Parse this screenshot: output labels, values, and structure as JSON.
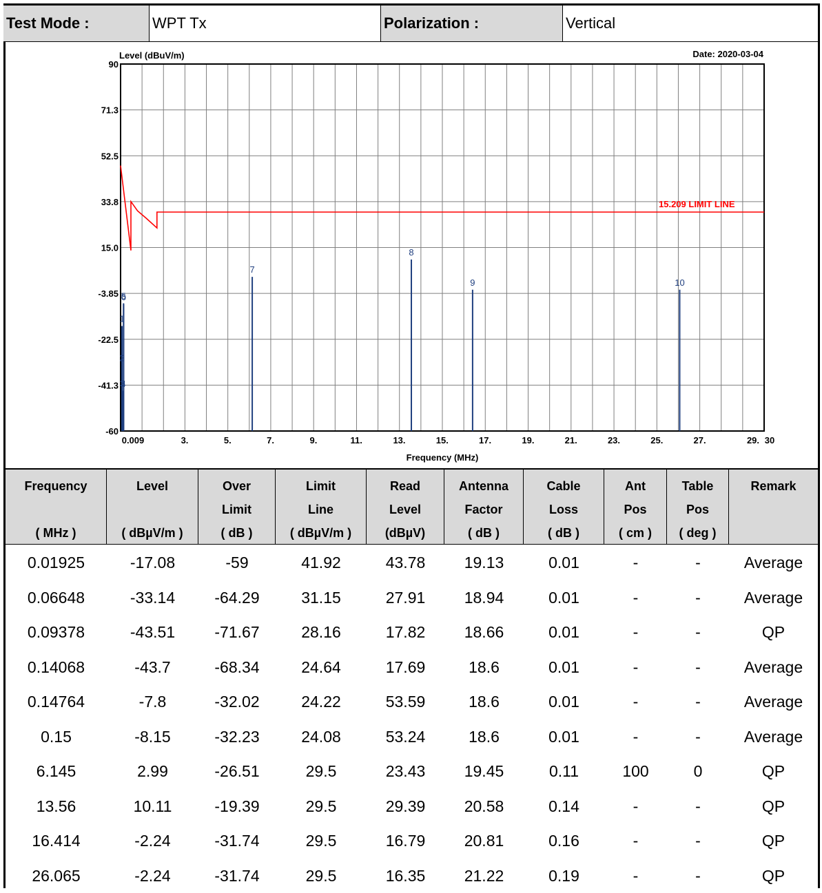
{
  "header": {
    "test_mode_label": "Test Mode :",
    "test_mode_value": "WPT Tx",
    "polarization_label": "Polarization :",
    "polarization_value": "Vertical"
  },
  "chart_data": {
    "type": "line",
    "title": "",
    "ylabel": "Level (dBuV/m)",
    "xlabel": "Frequency (MHz)",
    "date_label": "Date: 2020-03-04",
    "ylim": [
      -60,
      90
    ],
    "xlim": [
      0.009,
      30
    ],
    "y_ticks": [
      "90",
      "71.3",
      "52.5",
      "33.8",
      "15.0",
      "-3.85",
      "-22.5",
      "-41.3",
      "-60"
    ],
    "x_ticks": [
      "0.009",
      "3.",
      "5.",
      "7.",
      "9.",
      "11.",
      "13.",
      "15.",
      "17.",
      "19.",
      "21.",
      "23.",
      "25.",
      "27.",
      "29.",
      "30"
    ],
    "grid": true,
    "colors": {
      "limit": "#ff0000",
      "marker": "#1f3f7f"
    },
    "limit_line": {
      "name": "15.209 LIMIT LINE",
      "points": [
        [
          0.009,
          48.5
        ],
        [
          0.49,
          13.8
        ],
        [
          0.49,
          33.8
        ],
        [
          0.8,
          30.0
        ],
        [
          1.2,
          27.0
        ],
        [
          1.705,
          23.0
        ],
        [
          1.705,
          29.5
        ],
        [
          30,
          29.5
        ]
      ]
    },
    "markers": [
      {
        "label": "1",
        "x": 0.01925,
        "y": -17.08
      },
      {
        "label": "2",
        "x": 0.06648,
        "y": -33.14
      },
      {
        "label": "3",
        "x": 0.09378,
        "y": -43.51
      },
      {
        "label": "4",
        "x": 0.14068,
        "y": -43.7
      },
      {
        "label": "5",
        "x": 0.14764,
        "y": -7.8
      },
      {
        "label": "6",
        "x": 0.15,
        "y": -8.15
      },
      {
        "label": "7",
        "x": 6.145,
        "y": 2.99
      },
      {
        "label": "8",
        "x": 13.56,
        "y": 10.11
      },
      {
        "label": "9",
        "x": 16.414,
        "y": -2.24
      },
      {
        "label": "10",
        "x": 26.065,
        "y": -2.24
      }
    ]
  },
  "table": {
    "headers": [
      [
        "Frequency",
        "",
        "( MHz )"
      ],
      [
        "Level",
        "",
        "( dBµV/m )"
      ],
      [
        "Over",
        "Limit",
        "( dB )"
      ],
      [
        "Limit",
        "Line",
        "( dBµV/m )"
      ],
      [
        "Read",
        "Level",
        "(dBµV)"
      ],
      [
        "Antenna",
        "Factor",
        "( dB )"
      ],
      [
        "Cable",
        "Loss",
        "( dB )"
      ],
      [
        "Ant",
        "Pos",
        "( cm )"
      ],
      [
        "Table",
        "Pos",
        "( deg )"
      ],
      [
        "Remark",
        "",
        ""
      ]
    ],
    "rows": [
      [
        "0.01925",
        "-17.08",
        "-59",
        "41.92",
        "43.78",
        "19.13",
        "0.01",
        "-",
        "-",
        "Average"
      ],
      [
        "0.06648",
        "-33.14",
        "-64.29",
        "31.15",
        "27.91",
        "18.94",
        "0.01",
        "-",
        "-",
        "Average"
      ],
      [
        "0.09378",
        "-43.51",
        "-71.67",
        "28.16",
        "17.82",
        "18.66",
        "0.01",
        "-",
        "-",
        "QP"
      ],
      [
        "0.14068",
        "-43.7",
        "-68.34",
        "24.64",
        "17.69",
        "18.6",
        "0.01",
        "-",
        "-",
        "Average"
      ],
      [
        "0.14764",
        "-7.8",
        "-32.02",
        "24.22",
        "53.59",
        "18.6",
        "0.01",
        "-",
        "-",
        "Average"
      ],
      [
        "0.15",
        "-8.15",
        "-32.23",
        "24.08",
        "53.24",
        "18.6",
        "0.01",
        "-",
        "-",
        "Average"
      ],
      [
        "6.145",
        "2.99",
        "-26.51",
        "29.5",
        "23.43",
        "19.45",
        "0.11",
        "100",
        "0",
        "QP"
      ],
      [
        "13.56",
        "10.11",
        "-19.39",
        "29.5",
        "29.39",
        "20.58",
        "0.14",
        "-",
        "-",
        "QP"
      ],
      [
        "16.414",
        "-2.24",
        "-31.74",
        "29.5",
        "16.79",
        "20.81",
        "0.16",
        "-",
        "-",
        "QP"
      ],
      [
        "26.065",
        "-2.24",
        "-31.74",
        "29.5",
        "16.35",
        "21.22",
        "0.19",
        "-",
        "-",
        "QP"
      ]
    ]
  }
}
